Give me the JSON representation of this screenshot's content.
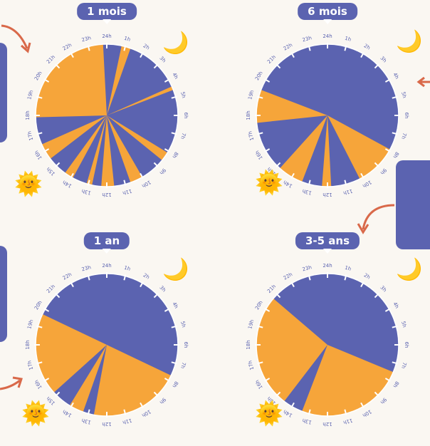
{
  "colors": {
    "night": "#5b63b0",
    "day": "#f6a53a",
    "pill": "#5b63b0",
    "arrow": "#d9694a",
    "tick": "#ffffff",
    "hour_text": "#5b63b0"
  },
  "hour_labels": [
    "24h",
    "1h",
    "2h",
    "3h",
    "4h",
    "5h",
    "6h",
    "7h",
    "8h",
    "9h",
    "10h",
    "11h",
    "12h",
    "13h",
    "14h",
    "15h",
    "16h",
    "17h",
    "18h",
    "19h",
    "20h",
    "21h",
    "22h",
    "23h"
  ],
  "panels": [
    {
      "label": "1 mois",
      "sleep_segments_hours": [
        [
          23.8,
          0.8
        ],
        [
          1.3,
          4.4
        ],
        [
          4.6,
          8.1
        ],
        [
          8.6,
          10.0
        ],
        [
          10.7,
          11.6
        ],
        [
          12.3,
          12.8
        ],
        [
          13.1,
          13.9
        ],
        [
          14.4,
          15.5
        ],
        [
          16.4,
          17.9
        ]
      ]
    },
    {
      "label": "6 mois",
      "sleep_segments_hours": [
        [
          19.4,
          7.9
        ],
        [
          10.2,
          11.8
        ],
        [
          12.3,
          13.4
        ],
        [
          14.8,
          17.6
        ]
      ]
    },
    {
      "label": "1 an",
      "sleep_segments_hours": [
        [
          19.7,
          7.7
        ],
        [
          12.7,
          13.3
        ],
        [
          14.1,
          15.2
        ]
      ]
    },
    {
      "label": "3-5 ans",
      "sleep_segments_hours": [
        [
          20.7,
          7.5
        ],
        [
          13.4,
          14.5
        ]
      ]
    }
  ],
  "icons": {
    "moon": "crescent-moon-icon",
    "sun": "smiling-sun-icon"
  }
}
